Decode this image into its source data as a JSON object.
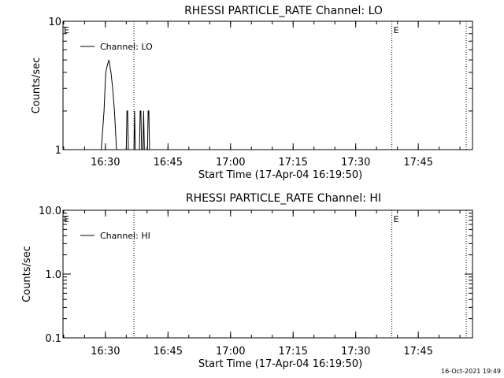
{
  "timestamp": "16-Oct-2021 19:49",
  "chart_data": [
    {
      "type": "line",
      "title": "RHESSI PARTICLE_RATE Channel: LO",
      "xlabel": "Start Time (17-Apr-04 16:19:50)",
      "ylabel": "Counts/sec",
      "yscale": "log",
      "ylim": [
        1,
        10
      ],
      "xlim": [
        "16:19:50",
        "17:58:00"
      ],
      "y_ticks": [
        "1",
        "10"
      ],
      "x_ticks": [
        {
          "t": "16:30:00",
          "label": "16:30"
        },
        {
          "t": "16:45:00",
          "label": "16:45"
        },
        {
          "t": "17:00:00",
          "label": "17:00"
        },
        {
          "t": "17:15:00",
          "label": "17:15"
        },
        {
          "t": "17:30:00",
          "label": "17:30"
        },
        {
          "t": "17:45:00",
          "label": "17:45"
        }
      ],
      "legend": {
        "label": "Channel: LO",
        "placement": "top-left"
      },
      "event_markers": [
        {
          "t": "16:36:50",
          "label": ""
        },
        {
          "t": "17:38:40",
          "label": "E"
        },
        {
          "t": "17:56:30",
          "label": ""
        }
      ],
      "edge_label_left": "E",
      "grid": false,
      "series": [
        {
          "x": [
            "16:19:50",
            "16:29:00",
            "16:29:40",
            "16:30:05",
            "16:30:25",
            "16:30:50",
            "16:31:20",
            "16:31:45",
            "16:32:10",
            "16:32:40",
            "16:33:40",
            "16:35:00",
            "16:35:10",
            "16:35:20",
            "16:35:30",
            "16:36:50",
            "16:37:00",
            "16:37:10",
            "16:38:10",
            "16:38:20",
            "16:38:30",
            "16:38:40",
            "16:38:50",
            "16:39:00",
            "16:39:10",
            "16:39:20",
            "16:39:30",
            "16:39:40",
            "16:40:05",
            "16:40:15",
            "16:40:25",
            "16:40:35",
            "16:40:45",
            "16:40:55",
            "16:41:05",
            "16:41:15",
            "16:41:25",
            "16:41:35",
            "16:41:45",
            "16:41:55",
            "16:42:05",
            "16:42:15",
            "16:42:25",
            "16:42:35",
            "16:43:00",
            "17:58:00"
          ],
          "y": [
            1,
            1,
            2,
            4,
            4.5,
            5,
            4,
            3,
            2,
            1,
            1,
            1,
            2,
            2,
            1,
            1,
            2,
            1,
            1,
            2,
            2,
            1,
            1,
            1,
            2,
            1,
            1,
            1,
            1,
            2,
            2,
            1,
            1,
            1,
            1,
            1,
            1,
            1,
            1,
            1,
            1,
            1,
            1,
            1,
            1,
            1
          ]
        }
      ]
    },
    {
      "type": "line",
      "title": "RHESSI PARTICLE_RATE Channel: HI",
      "xlabel": "Start Time (17-Apr-04 16:19:50)",
      "ylabel": "Counts/sec",
      "yscale": "log",
      "ylim": [
        0.1,
        10
      ],
      "xlim": [
        "16:19:50",
        "17:58:00"
      ],
      "y_ticks": [
        "0.1",
        "1.0",
        "10.0"
      ],
      "x_ticks": [
        {
          "t": "16:30:00",
          "label": "16:30"
        },
        {
          "t": "16:45:00",
          "label": "16:45"
        },
        {
          "t": "17:00:00",
          "label": "17:00"
        },
        {
          "t": "17:15:00",
          "label": "17:15"
        },
        {
          "t": "17:30:00",
          "label": "17:30"
        },
        {
          "t": "17:45:00",
          "label": "17:45"
        }
      ],
      "legend": {
        "label": "Channel: HI",
        "placement": "top-left"
      },
      "event_markers": [
        {
          "t": "16:36:50",
          "label": ""
        },
        {
          "t": "17:38:40",
          "label": "E"
        },
        {
          "t": "17:56:30",
          "label": ""
        }
      ],
      "edge_label_left": "E",
      "grid": false,
      "series": []
    }
  ]
}
